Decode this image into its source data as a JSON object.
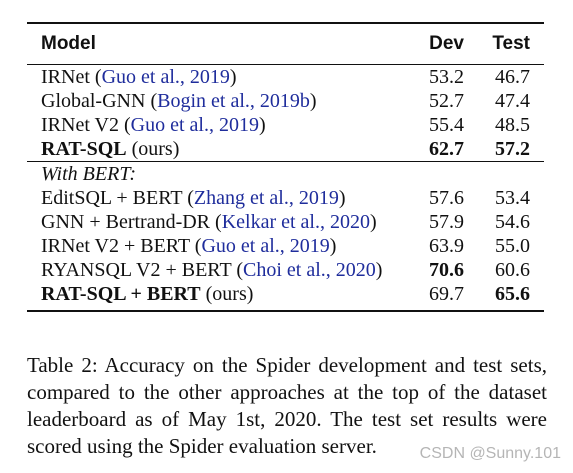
{
  "table": {
    "headers": {
      "model": "Model",
      "dev": "Dev",
      "test": "Test"
    },
    "section1": [
      {
        "name": "IRNet",
        "cite": "Guo et al., 2019",
        "suffix": "",
        "dev": "53.2",
        "test": "46.7",
        "bold_name": false,
        "bold_dev": false,
        "bold_test": false
      },
      {
        "name": "Global-GNN",
        "cite": "Bogin et al., 2019b",
        "suffix": "",
        "dev": "52.7",
        "test": "47.4",
        "bold_name": false,
        "bold_dev": false,
        "bold_test": false
      },
      {
        "name": "IRNet V2",
        "cite": "Guo et al., 2019",
        "suffix": "",
        "dev": "55.4",
        "test": "48.5",
        "bold_name": false,
        "bold_dev": false,
        "bold_test": false
      },
      {
        "name": "RAT-SQL",
        "cite": "",
        "suffix": "(ours)",
        "dev": "62.7",
        "test": "57.2",
        "bold_name": true,
        "bold_dev": true,
        "bold_test": true
      }
    ],
    "section2_label": "With BERT:",
    "section2": [
      {
        "name": "EditSQL + BERT",
        "cite": "Zhang et al., 2019",
        "suffix": "",
        "dev": "57.6",
        "test": "53.4",
        "bold_name": false,
        "bold_dev": false,
        "bold_test": false
      },
      {
        "name": "GNN + Bertrand-DR",
        "cite": "Kelkar et al., 2020",
        "suffix": "",
        "dev": "57.9",
        "test": "54.6",
        "bold_name": false,
        "bold_dev": false,
        "bold_test": false
      },
      {
        "name": "IRNet V2 + BERT",
        "cite": "Guo et al., 2019",
        "suffix": "",
        "dev": "63.9",
        "test": "55.0",
        "bold_name": false,
        "bold_dev": false,
        "bold_test": false
      },
      {
        "name": "RYANSQL V2 + BERT",
        "cite": "Choi et al., 2020",
        "suffix": "",
        "dev": "70.6",
        "test": "60.6",
        "bold_name": false,
        "bold_dev": true,
        "bold_test": false
      },
      {
        "name": "RAT-SQL + BERT",
        "cite": "",
        "suffix": "(ours)",
        "dev": "69.7",
        "test": "65.6",
        "bold_name": true,
        "bold_dev": false,
        "bold_test": true
      }
    ]
  },
  "caption": "Table 2: Accuracy on the Spider development and test sets, compared to the other approaches at the top of the dataset leaderboard as of May 1st, 2020. The test set results were scored using the Spider evaluation server.",
  "watermark": "CSDN @Sunny.101"
}
